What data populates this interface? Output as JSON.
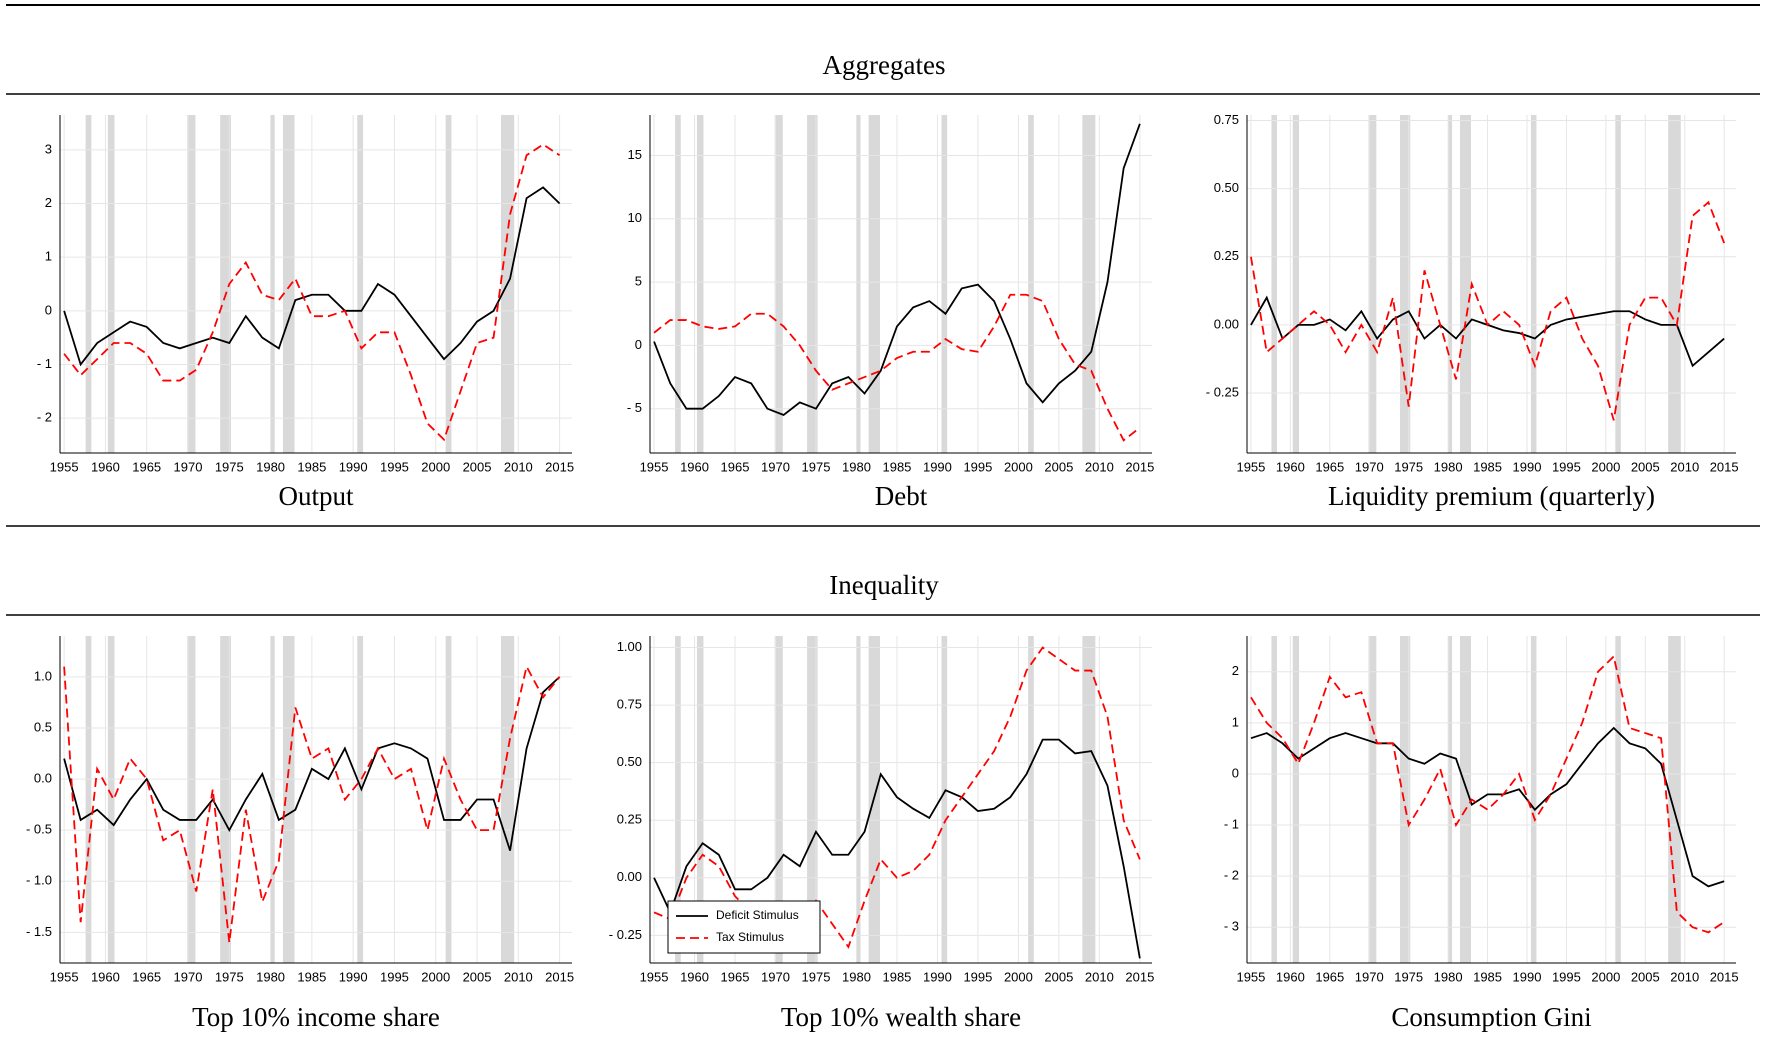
{
  "sections": [
    "Aggregates",
    "Inequality"
  ],
  "recessions": [
    [
      1957.6,
      1958.3
    ],
    [
      1960.3,
      1961.1
    ],
    [
      1969.9,
      1970.9
    ],
    [
      1973.9,
      1975.2
    ],
    [
      1980.0,
      1980.5
    ],
    [
      1981.5,
      1982.9
    ],
    [
      1990.5,
      1991.2
    ],
    [
      2001.2,
      2001.9
    ],
    [
      2007.9,
      2009.5
    ]
  ],
  "chart_data": [
    {
      "type": "line",
      "title": "Output",
      "grid": true,
      "x": [
        1955,
        1957,
        1959,
        1961,
        1963,
        1965,
        1967,
        1969,
        1971,
        1973,
        1975,
        1977,
        1979,
        1981,
        1983,
        1985,
        1987,
        1989,
        1991,
        1993,
        1995,
        1997,
        1999,
        2001,
        2003,
        2005,
        2007,
        2009,
        2011,
        2013,
        2015
      ],
      "xlim": [
        1954.5,
        2016.5
      ],
      "xticks": [
        1955,
        1960,
        1965,
        1970,
        1975,
        1980,
        1985,
        1990,
        1995,
        2000,
        2005,
        2010,
        2015
      ],
      "ylim": [
        -2.65,
        3.65
      ],
      "yticks": [
        {
          "value": -2,
          "label": "- 2"
        },
        {
          "value": -1,
          "label": "- 1"
        },
        0,
        1,
        2,
        3
      ],
      "series": [
        {
          "color": "#000000",
          "linestyle": "solid",
          "values": [
            0,
            -1.0,
            -0.6,
            -0.4,
            -0.2,
            -0.3,
            -0.6,
            -0.7,
            -0.6,
            -0.5,
            -0.6,
            -0.1,
            -0.5,
            -0.7,
            0.2,
            0.3,
            0.3,
            0.0,
            0.0,
            0.5,
            0.3,
            -0.1,
            -0.5,
            -0.9,
            -0.6,
            -0.2,
            0.0,
            0.6,
            2.1,
            2.3,
            2.0
          ]
        },
        {
          "color": "#ff0000",
          "linestyle": "dashed",
          "values": [
            -0.8,
            -1.2,
            -0.9,
            -0.6,
            -0.6,
            -0.8,
            -1.3,
            -1.3,
            -1.1,
            -0.4,
            0.5,
            0.9,
            0.3,
            0.2,
            0.6,
            -0.1,
            -0.1,
            0.0,
            -0.7,
            -0.4,
            -0.4,
            -1.2,
            -2.1,
            -2.4,
            -1.5,
            -0.6,
            -0.5,
            1.8,
            2.9,
            3.1,
            2.9
          ]
        }
      ]
    },
    {
      "type": "line",
      "title": "Debt",
      "grid": true,
      "x": [
        1955,
        1957,
        1959,
        1961,
        1963,
        1965,
        1967,
        1969,
        1971,
        1973,
        1975,
        1977,
        1979,
        1981,
        1983,
        1985,
        1987,
        1989,
        1991,
        1993,
        1995,
        1997,
        1999,
        2001,
        2003,
        2005,
        2007,
        2009,
        2011,
        2013,
        2015
      ],
      "xlim": [
        1954.5,
        2016.5
      ],
      "xticks": [
        1955,
        1960,
        1965,
        1970,
        1975,
        1980,
        1985,
        1990,
        1995,
        2000,
        2005,
        2010,
        2015
      ],
      "ylim": [
        -8.5,
        18.2
      ],
      "yticks": [
        {
          "value": -5,
          "label": "- 5"
        },
        0,
        5,
        10,
        15
      ],
      "series": [
        {
          "color": "#000000",
          "linestyle": "solid",
          "values": [
            0.3,
            -3,
            -5,
            -5,
            -4,
            -2.5,
            -3.0,
            -5.0,
            -5.5,
            -4.5,
            -5.0,
            -3,
            -2.5,
            -3.8,
            -2,
            1.5,
            3,
            3.5,
            2.5,
            4.5,
            4.8,
            3.5,
            0.5,
            -3.0,
            -4.5,
            -3.0,
            -2,
            -0.5,
            5,
            14,
            17.5
          ]
        },
        {
          "color": "#ff0000",
          "linestyle": "dashed",
          "values": [
            1,
            2,
            2,
            1.5,
            1.3,
            1.5,
            2.5,
            2.5,
            1.5,
            0,
            -2,
            -3.5,
            -3,
            -2.5,
            -2,
            -1,
            -0.5,
            -0.5,
            0.5,
            -0.3,
            -0.5,
            1.5,
            4,
            4,
            3.5,
            0.5,
            -1.5,
            -2,
            -5,
            -7.5,
            -6.5
          ]
        }
      ]
    },
    {
      "type": "line",
      "title": "Liquidity premium (quarterly)",
      "grid": true,
      "x": [
        1955,
        1957,
        1959,
        1961,
        1963,
        1965,
        1967,
        1969,
        1971,
        1973,
        1975,
        1977,
        1979,
        1981,
        1983,
        1985,
        1987,
        1989,
        1991,
        1993,
        1995,
        1997,
        1999,
        2001,
        2003,
        2005,
        2007,
        2009,
        2011,
        2013,
        2015
      ],
      "xlim": [
        1954.5,
        2016.5
      ],
      "xticks": [
        1955,
        1960,
        1965,
        1970,
        1975,
        1980,
        1985,
        1990,
        1995,
        2000,
        2005,
        2010,
        2015
      ],
      "ylim": [
        -0.47,
        0.77
      ],
      "yticks": [
        {
          "value": -0.25,
          "label": "- 0.25"
        },
        {
          "value": 0,
          "label": "0.00"
        },
        0.25,
        {
          "value": 0.5,
          "label": "0.50"
        },
        0.75
      ],
      "series": [
        {
          "color": "#000000",
          "linestyle": "solid",
          "values": [
            0.0,
            0.1,
            -0.05,
            0.0,
            0.0,
            0.02,
            -0.02,
            0.05,
            -0.05,
            0.02,
            0.05,
            -0.05,
            0.0,
            -0.05,
            0.02,
            0.0,
            -0.02,
            -0.03,
            -0.05,
            0.0,
            0.02,
            0.03,
            0.04,
            0.05,
            0.05,
            0.02,
            0.0,
            0.0,
            -0.15,
            -0.1,
            -0.05
          ]
        },
        {
          "color": "#ff0000",
          "linestyle": "dashed",
          "values": [
            0.25,
            -0.1,
            -0.05,
            0.0,
            0.05,
            0.0,
            -0.1,
            0.0,
            -0.1,
            0.1,
            -0.3,
            0.2,
            0.0,
            -0.2,
            0.15,
            0.0,
            0.05,
            0.0,
            -0.15,
            0.05,
            0.1,
            -0.05,
            -0.15,
            -0.35,
            0.0,
            0.1,
            0.1,
            0.0,
            0.4,
            0.45,
            0.3
          ]
        }
      ]
    },
    {
      "type": "line",
      "title": "Top 10% income share",
      "grid": true,
      "x": [
        1955,
        1957,
        1959,
        1961,
        1963,
        1965,
        1967,
        1969,
        1971,
        1973,
        1975,
        1977,
        1979,
        1981,
        1983,
        1985,
        1987,
        1989,
        1991,
        1993,
        1995,
        1997,
        1999,
        2001,
        2003,
        2005,
        2007,
        2009,
        2011,
        2013,
        2015
      ],
      "xlim": [
        1954.5,
        2016.5
      ],
      "xticks": [
        1955,
        1960,
        1965,
        1970,
        1975,
        1980,
        1985,
        1990,
        1995,
        2000,
        2005,
        2010,
        2015
      ],
      "ylim": [
        -1.8,
        1.4
      ],
      "yticks": [
        {
          "value": -1.5,
          "label": "- 1.5"
        },
        {
          "value": -1,
          "label": "- 1.0"
        },
        {
          "value": -0.5,
          "label": "- 0.5"
        },
        {
          "value": 0,
          "label": "0.0"
        },
        0.5,
        {
          "value": 1,
          "label": "1.0"
        }
      ],
      "series": [
        {
          "color": "#000000",
          "linestyle": "solid",
          "values": [
            0.2,
            -0.4,
            -0.3,
            -0.45,
            -0.2,
            0.0,
            -0.3,
            -0.4,
            -0.4,
            -0.2,
            -0.5,
            -0.2,
            0.05,
            -0.4,
            -0.3,
            0.1,
            0.0,
            0.3,
            -0.1,
            0.3,
            0.35,
            0.3,
            0.2,
            -0.4,
            -0.4,
            -0.2,
            -0.2,
            -0.7,
            0.3,
            0.85,
            1.0
          ]
        },
        {
          "color": "#ff0000",
          "linestyle": "dashed",
          "values": [
            1.1,
            -1.4,
            0.1,
            -0.2,
            0.2,
            0.0,
            -0.6,
            -0.5,
            -1.1,
            -0.1,
            -1.6,
            -0.3,
            -1.2,
            -0.8,
            0.7,
            0.2,
            0.3,
            -0.2,
            0.0,
            0.3,
            0.0,
            0.1,
            -0.5,
            0.2,
            -0.2,
            -0.5,
            -0.5,
            0.4,
            1.1,
            0.8,
            1.0
          ]
        }
      ]
    },
    {
      "type": "line",
      "title": "Top 10% wealth share",
      "grid": true,
      "legend": "lower left",
      "x": [
        1955,
        1957,
        1959,
        1961,
        1963,
        1965,
        1967,
        1969,
        1971,
        1973,
        1975,
        1977,
        1979,
        1981,
        1983,
        1985,
        1987,
        1989,
        1991,
        1993,
        1995,
        1997,
        1999,
        2001,
        2003,
        2005,
        2007,
        2009,
        2011,
        2013,
        2015
      ],
      "xlim": [
        1954.5,
        2016.5
      ],
      "xticks": [
        1955,
        1960,
        1965,
        1970,
        1975,
        1980,
        1985,
        1990,
        1995,
        2000,
        2005,
        2010,
        2015
      ],
      "ylim": [
        -0.37,
        1.05
      ],
      "yticks": [
        {
          "value": -0.25,
          "label": "- 0.25"
        },
        {
          "value": 0,
          "label": "0.00"
        },
        0.25,
        {
          "value": 0.5,
          "label": "0.50"
        },
        0.75,
        {
          "value": 1,
          "label": "1.00"
        }
      ],
      "series": [
        {
          "name": "Deficit Stimulus",
          "color": "#000000",
          "linestyle": "solid",
          "values": [
            0.0,
            -0.15,
            0.05,
            0.15,
            0.1,
            -0.05,
            -0.05,
            0.0,
            0.1,
            0.05,
            0.2,
            0.1,
            0.1,
            0.2,
            0.45,
            0.35,
            0.3,
            0.26,
            0.38,
            0.35,
            0.29,
            0.3,
            0.35,
            0.45,
            0.6,
            0.6,
            0.54,
            0.55,
            0.4,
            0.05,
            -0.35
          ]
        },
        {
          "name": "Tax Stimulus",
          "color": "#ff0000",
          "linestyle": "dashed",
          "values": [
            -0.15,
            -0.18,
            0.0,
            0.1,
            0.05,
            -0.08,
            -0.15,
            -0.2,
            -0.15,
            -0.2,
            -0.1,
            -0.2,
            -0.3,
            -0.1,
            0.08,
            0.0,
            0.03,
            0.1,
            0.25,
            0.35,
            0.45,
            0.55,
            0.7,
            0.9,
            1.0,
            0.95,
            0.9,
            0.9,
            0.7,
            0.25,
            0.08
          ]
        }
      ]
    },
    {
      "type": "line",
      "title": "Consumption Gini",
      "grid": true,
      "x": [
        1955,
        1957,
        1959,
        1961,
        1963,
        1965,
        1967,
        1969,
        1971,
        1973,
        1975,
        1977,
        1979,
        1981,
        1983,
        1985,
        1987,
        1989,
        1991,
        1993,
        1995,
        1997,
        1999,
        2001,
        2003,
        2005,
        2007,
        2009,
        2011,
        2013,
        2015
      ],
      "xlim": [
        1954.5,
        2016.5
      ],
      "xticks": [
        1955,
        1960,
        1965,
        1970,
        1975,
        1980,
        1985,
        1990,
        1995,
        2000,
        2005,
        2010,
        2015
      ],
      "ylim": [
        -3.7,
        2.7
      ],
      "yticks": [
        {
          "value": -3,
          "label": "- 3"
        },
        {
          "value": -2,
          "label": "- 2"
        },
        {
          "value": -1,
          "label": "- 1"
        },
        0,
        1,
        2
      ],
      "series": [
        {
          "color": "#000000",
          "linestyle": "solid",
          "values": [
            0.7,
            0.8,
            0.6,
            0.3,
            0.5,
            0.7,
            0.8,
            0.7,
            0.6,
            0.6,
            0.3,
            0.2,
            0.4,
            0.3,
            -0.6,
            -0.4,
            -0.4,
            -0.3,
            -0.7,
            -0.4,
            -0.2,
            0.2,
            0.6,
            0.9,
            0.6,
            0.5,
            0.2,
            -0.9,
            -2.0,
            -2.2,
            -2.1
          ]
        },
        {
          "color": "#ff0000",
          "linestyle": "dashed",
          "values": [
            1.5,
            1.0,
            0.7,
            0.2,
            1.0,
            1.9,
            1.5,
            1.6,
            0.6,
            0.6,
            -1.0,
            -0.5,
            0.1,
            -1.0,
            -0.5,
            -0.7,
            -0.4,
            0.0,
            -0.9,
            -0.4,
            0.3,
            1.0,
            2.0,
            2.3,
            0.9,
            0.8,
            0.7,
            -2.7,
            -3.0,
            -3.1,
            -2.9
          ]
        }
      ]
    }
  ]
}
